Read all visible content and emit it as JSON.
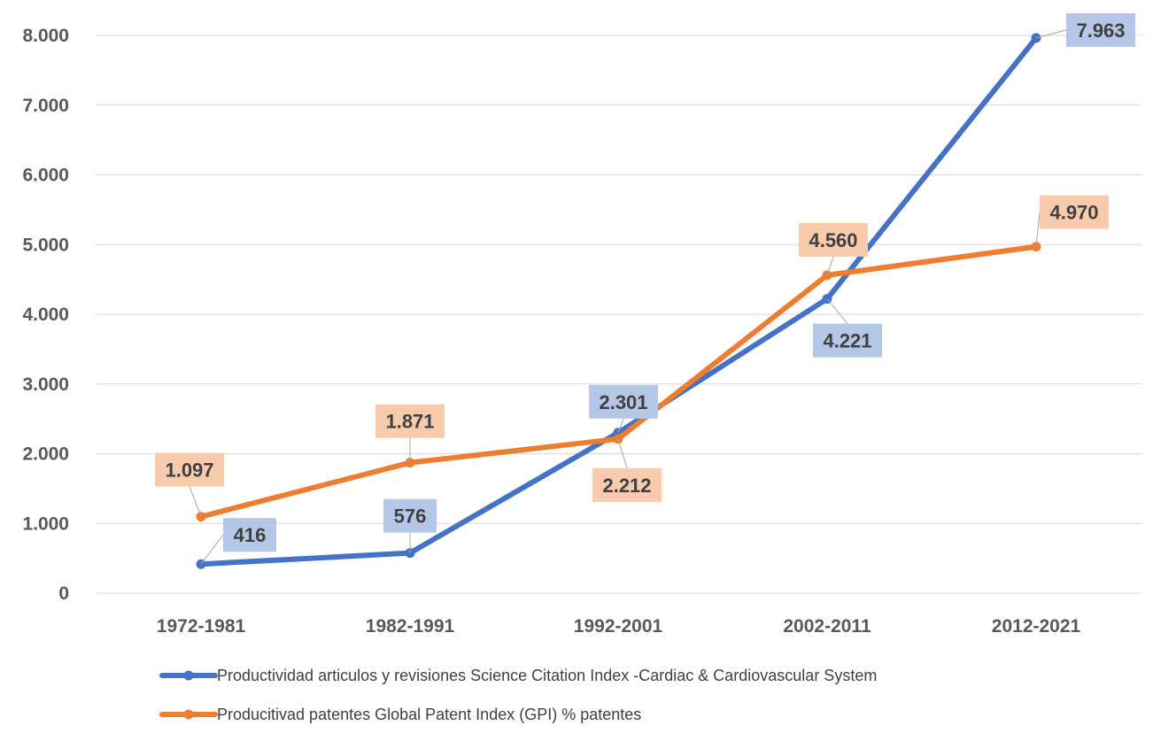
{
  "chart_data": {
    "type": "line",
    "categories": [
      "1972-1981",
      "1982-1991",
      "1992-2001",
      "2002-2011",
      "2012-2021"
    ],
    "series": [
      {
        "name": "Productividad articulos y revisiones Science Citation Index -Cardiac & Cardiovascular System",
        "values": [
          416,
          576,
          2301,
          4221,
          7963
        ],
        "labels": [
          "416",
          "576",
          "2.301",
          "4.221",
          "7.963"
        ],
        "color": "#4472C4",
        "label_bg": "#B4C7E7"
      },
      {
        "name": "Producitivad patentes Global Patent Index (GPI) % patentes",
        "values": [
          1097,
          1871,
          2212,
          4560,
          4970
        ],
        "labels": [
          "1.097",
          "1.871",
          "2.212",
          "4.560",
          "4.970"
        ],
        "color": "#ED7D31",
        "label_bg": "#F8CBAD"
      }
    ],
    "yticks": [
      0,
      1000,
      2000,
      3000,
      4000,
      5000,
      6000,
      7000,
      8000
    ],
    "ytick_labels": [
      "0",
      "1.000",
      "2.000",
      "3.000",
      "4.000",
      "5.000",
      "6.000",
      "7.000",
      "8.000"
    ],
    "ylim": [
      0,
      8000
    ],
    "grid": true,
    "legend_position": "bottom",
    "title": "",
    "xlabel": "",
    "ylabel": ""
  }
}
